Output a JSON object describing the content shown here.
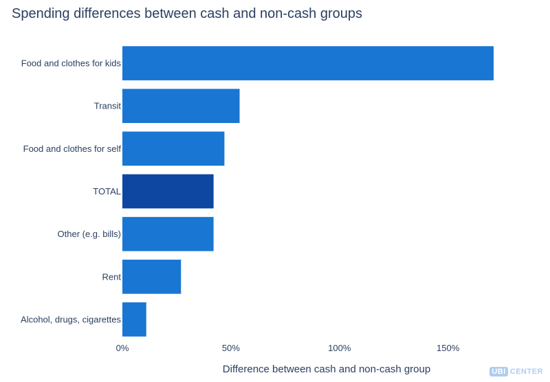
{
  "chart_data": {
    "type": "bar",
    "orientation": "horizontal",
    "title": "Spending differences between cash and non-cash groups",
    "xlabel": "Difference between cash and non-cash group",
    "ylabel": "",
    "categories": [
      "Food and clothes for kids",
      "Transit",
      "Food and clothes for self",
      "TOTAL",
      "Other (e.g. bills)",
      "Rent",
      "Alcohol, drugs, cigarettes"
    ],
    "values": [
      171,
      54,
      47,
      42,
      42,
      27,
      11
    ],
    "unit": "%",
    "xlim": [
      0,
      190
    ],
    "xticks": [
      0,
      50,
      100,
      150
    ],
    "xtick_labels": [
      "0%",
      "50%",
      "100%",
      "150%"
    ],
    "grid": false,
    "highlight_category": "TOTAL",
    "colors": {
      "bar": "#1976d2",
      "highlight": "#0d47a1"
    }
  },
  "branding": {
    "logo_part1": "UBI",
    "logo_part2": "CENTER"
  }
}
